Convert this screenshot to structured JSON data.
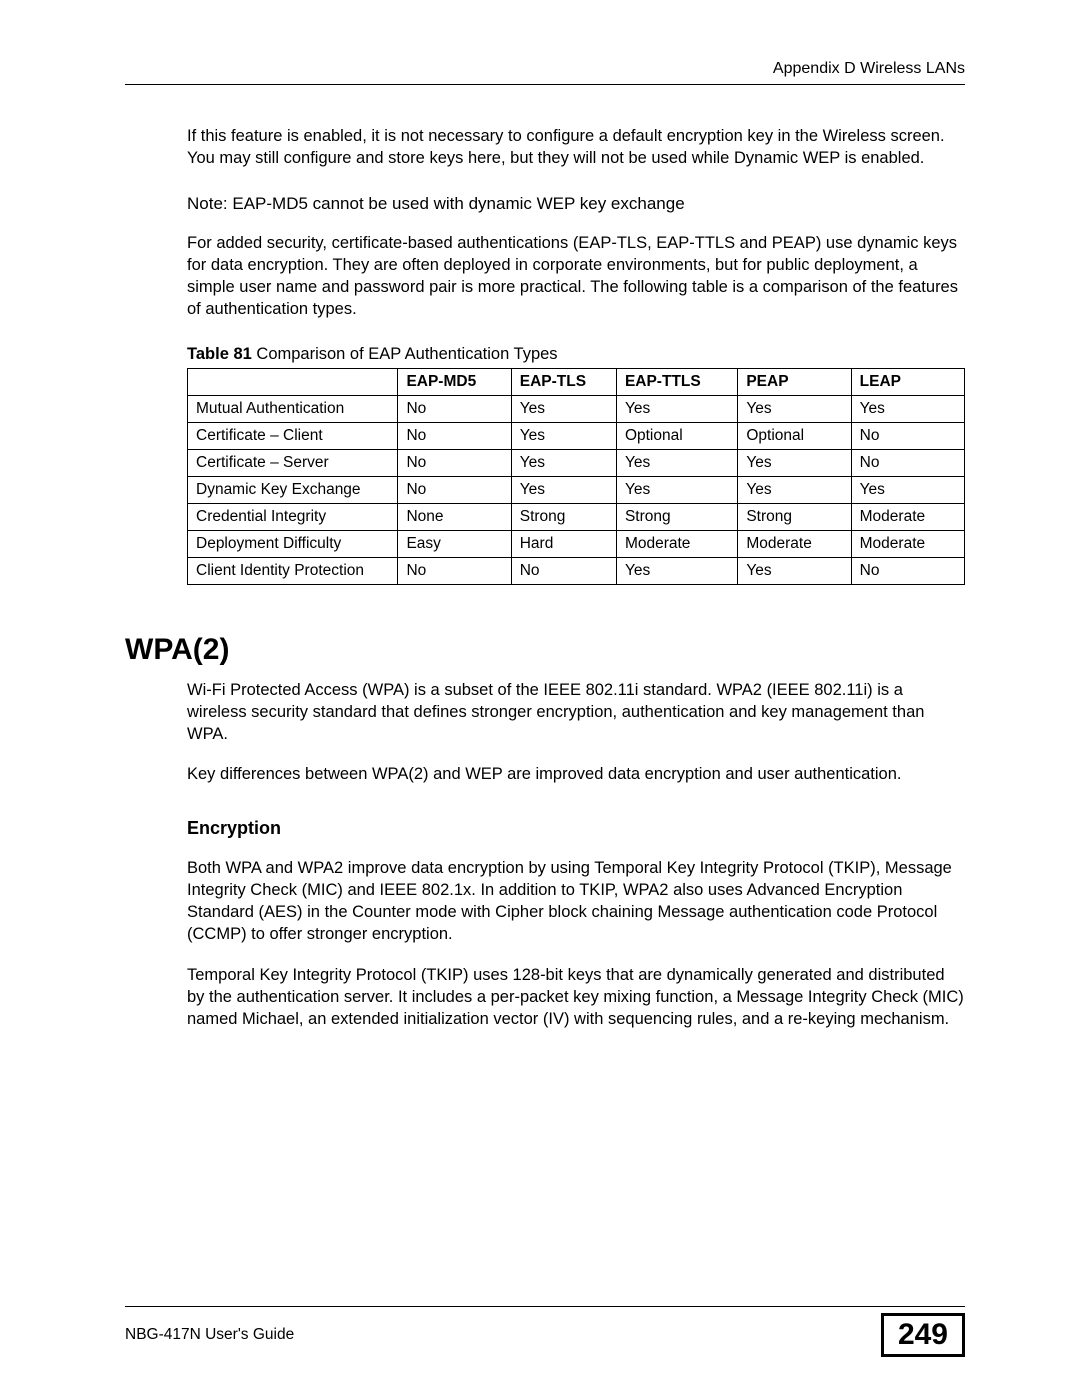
{
  "header": {
    "appendix": "Appendix D Wireless LANs"
  },
  "paragraphs": {
    "p1": "If this feature is enabled, it is not necessary to configure a default encryption key in the Wireless screen. You may still configure and store keys here, but they will not be used while Dynamic WEP is enabled.",
    "note": "Note: EAP-MD5 cannot be used with dynamic WEP key exchange",
    "p2": "For added security, certificate-based authentications (EAP-TLS, EAP-TTLS and PEAP) use dynamic keys for data encryption. They are often deployed in corporate environments, but for public deployment, a simple user name and password pair is more practical. The following table is a comparison of the features of authentication types."
  },
  "table": {
    "caption_bold": "Table 81",
    "caption_rest": "   Comparison of EAP Authentication Types",
    "columns": [
      "",
      "EAP-MD5",
      "EAP-TLS",
      "EAP-TTLS",
      "PEAP",
      "LEAP"
    ],
    "rows": [
      [
        "Mutual Authentication",
        "No",
        "Yes",
        "Yes",
        "Yes",
        "Yes"
      ],
      [
        "Certificate – Client",
        "No",
        "Yes",
        "Optional",
        "Optional",
        "No"
      ],
      [
        "Certificate – Server",
        "No",
        "Yes",
        "Yes",
        "Yes",
        "No"
      ],
      [
        "Dynamic Key Exchange",
        "No",
        "Yes",
        "Yes",
        "Yes",
        "Yes"
      ],
      [
        "Credential Integrity",
        "None",
        "Strong",
        "Strong",
        "Strong",
        "Moderate"
      ],
      [
        "Deployment Difficulty",
        "Easy",
        "Hard",
        "Moderate",
        "Moderate",
        "Moderate"
      ],
      [
        "Client Identity Protection",
        "No",
        "No",
        "Yes",
        "Yes",
        "No"
      ]
    ]
  },
  "section": {
    "title": "WPA(2)",
    "p3": "Wi-Fi Protected Access (WPA) is a subset of the IEEE 802.11i standard. WPA2 (IEEE 802.11i) is a wireless security standard that defines stronger encryption, authentication and key management than WPA.",
    "p4": "Key differences between WPA(2) and WEP are improved data encryption and user authentication.",
    "sub_title": "Encryption",
    "p5": "Both WPA and WPA2 improve data encryption by using Temporal Key Integrity Protocol (TKIP), Message Integrity Check (MIC) and IEEE 802.1x. In addition to TKIP, WPA2 also uses Advanced Encryption Standard (AES) in the Counter mode with Cipher block chaining Message authentication code Protocol (CCMP) to offer stronger encryption.",
    "p6": "Temporal Key Integrity Protocol (TKIP) uses 128-bit keys that are dynamically generated and distributed by the authentication server. It includes a per-packet key mixing function, a Message Integrity Check (MIC) named Michael, an extended initialization vector (IV) with sequencing rules, and a re-keying mechanism."
  },
  "footer": {
    "guide": "NBG-417N User's Guide",
    "page": "249"
  }
}
